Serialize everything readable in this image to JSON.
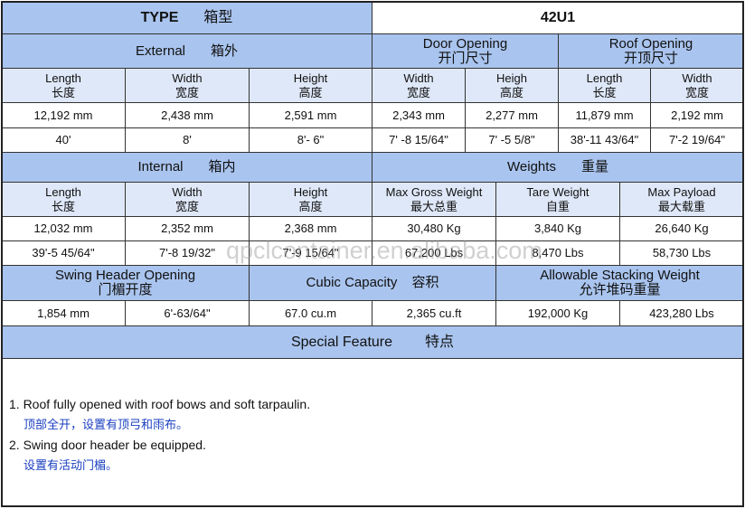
{
  "type_row": {
    "label": "TYPE",
    "label_zh": "箱型",
    "value": "42U1"
  },
  "external": {
    "title": "External",
    "title_zh": "箱外",
    "headers": [
      {
        "en": "Length",
        "zh": "长度"
      },
      {
        "en": "Width",
        "zh": "宽度"
      },
      {
        "en": "Height",
        "zh": "高度"
      }
    ],
    "mm": [
      "12,192 mm",
      "2,438 mm",
      "2,591 mm"
    ],
    "ft": [
      "40'",
      "8'",
      "8'- 6\""
    ]
  },
  "door_opening": {
    "title": "Door Opening",
    "title_zh": "开门尺寸",
    "headers": [
      {
        "en": "Width",
        "zh": "宽度"
      },
      {
        "en": "Heigh",
        "zh": "高度"
      }
    ],
    "mm": [
      "2,343 mm",
      "2,277 mm"
    ],
    "ft": [
      "7' -8 15/64\"",
      "7' -5 5/8\""
    ]
  },
  "roof_opening": {
    "title": "Roof Opening",
    "title_zh": "开顶尺寸",
    "headers": [
      {
        "en": "Length",
        "zh": "长度"
      },
      {
        "en": "Width",
        "zh": "宽度"
      }
    ],
    "mm": [
      "11,879 mm",
      "2,192 mm"
    ],
    "ft": [
      "38'-11 43/64\"",
      "7'-2 19/64\""
    ]
  },
  "internal": {
    "title": "Internal",
    "title_zh": "箱内",
    "headers": [
      {
        "en": "Length",
        "zh": "长度"
      },
      {
        "en": "Width",
        "zh": "宽度"
      },
      {
        "en": "Height",
        "zh": "高度"
      }
    ],
    "mm": [
      "12,032 mm",
      "2,352 mm",
      "2,368 mm"
    ],
    "ft": [
      "39'-5 45/64\"",
      "7'-8 19/32\"",
      "7'-9 15/64\""
    ]
  },
  "weights": {
    "title": "Weights",
    "title_zh": "重量",
    "headers": [
      {
        "en": "Max Gross Weight",
        "zh": "最大总重"
      },
      {
        "en": "Tare Weight",
        "zh": "自重"
      },
      {
        "en": "Max Payload",
        "zh": "最大载重"
      }
    ],
    "kg": [
      "30,480 Kg",
      "3,840 Kg",
      "26,640 Kg"
    ],
    "lbs": [
      "67,200 Lbs",
      "8,470 Lbs",
      "58,730 Lbs"
    ]
  },
  "swing_header": {
    "title": "Swing Header Opening",
    "title_zh": "门楣开度",
    "values": [
      "1,854 mm",
      "6'-63/64\""
    ]
  },
  "cubic_capacity": {
    "title": "Cubic Capacity",
    "title_zh": "容积",
    "values": [
      "67.0 cu.m",
      "2,365 cu.ft"
    ]
  },
  "stacking": {
    "title": "Allowable Stacking Weight",
    "title_zh": "允许堆码重量",
    "values": [
      "192,000 Kg",
      "423,280 Lbs"
    ]
  },
  "special_feature": {
    "title": "Special Feature",
    "title_zh": "特点",
    "items": [
      {
        "en": "1. Roof fully opened with roof bows and soft tarpaulin.",
        "zh": "顶部全开，设置有顶弓和雨布。"
      },
      {
        "en": "2. Swing door header be equipped.",
        "zh": "设置有活动门楣。"
      }
    ]
  },
  "watermark": "qpclcontainer.en.alibaba.com",
  "colors": {
    "section_header": "#a9c4ee",
    "column_header": "#dfe8f8",
    "note_zh": "#1a3fc0"
  }
}
